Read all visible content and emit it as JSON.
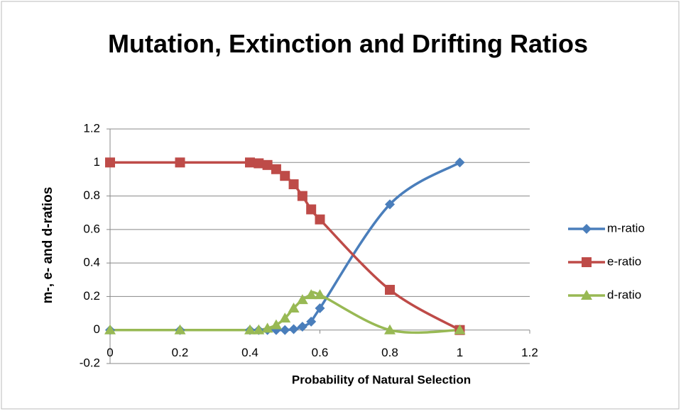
{
  "chart_data": {
    "type": "scatter-smooth",
    "title": "Mutation, Extinction and Drifting Ratios",
    "x_label": "Probability of Natural Selection",
    "y_label": "m-, e- and d-ratios",
    "x": [
      0,
      0.2,
      0.4,
      0.425,
      0.45,
      0.475,
      0.5,
      0.525,
      0.55,
      0.575,
      0.6,
      0.8,
      1
    ],
    "series": [
      {
        "name": "m-ratio",
        "color": "#4a7ebb",
        "marker": "diamond",
        "values": [
          0,
          0,
          0,
          0,
          0,
          0,
          0,
          0.005,
          0.02,
          0.05,
          0.13,
          0.75,
          1
        ]
      },
      {
        "name": "e-ratio",
        "color": "#be4b48",
        "marker": "square",
        "values": [
          1,
          1,
          1,
          0.995,
          0.985,
          0.96,
          0.92,
          0.87,
          0.8,
          0.72,
          0.66,
          0.24,
          0
        ]
      },
      {
        "name": "d-ratio",
        "color": "#98b954",
        "marker": "triangle",
        "values": [
          0,
          0,
          0,
          0,
          0.01,
          0.03,
          0.07,
          0.13,
          0.18,
          0.21,
          0.21,
          0,
          0
        ]
      }
    ],
    "xlim": [
      0,
      1.2
    ],
    "xticks": [
      0,
      0.2,
      0.4,
      0.6,
      0.8,
      1,
      1.2
    ],
    "ylim": [
      -0.2,
      1.2
    ],
    "yticks": [
      -0.2,
      0,
      0.2,
      0.4,
      0.6,
      0.8,
      1,
      1.2
    ],
    "grid": true,
    "legend": "right"
  }
}
